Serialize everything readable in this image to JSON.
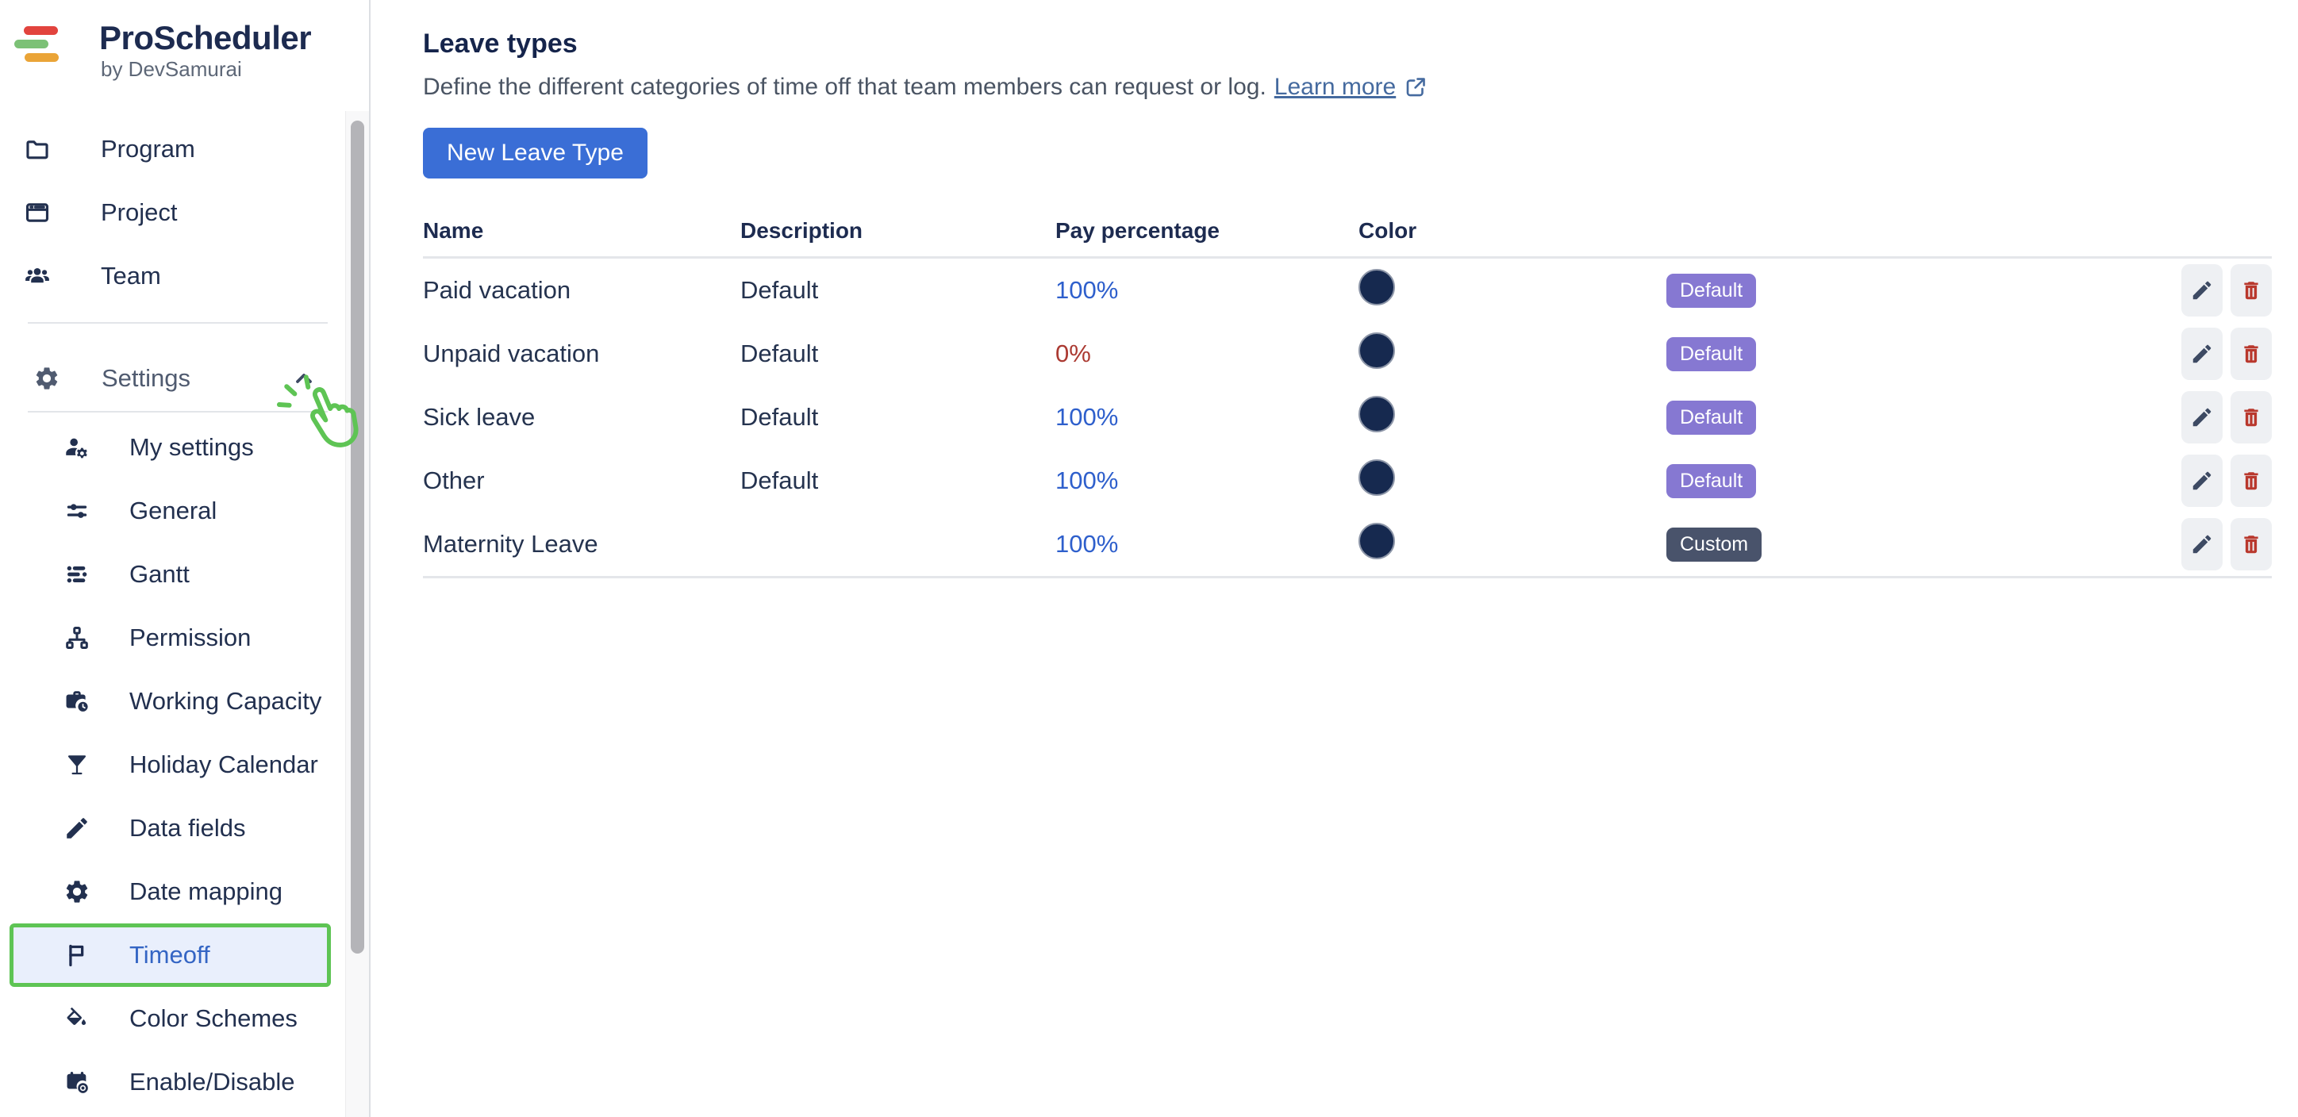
{
  "app": {
    "title": "ProScheduler",
    "byline": "by DevSamurai",
    "logo_colors": {
      "top": "#e2443e",
      "middle": "#7cc176",
      "bottom": "#eaa437"
    }
  },
  "sidebar": {
    "nav_items": [
      {
        "label": "Program",
        "icon": "folder"
      },
      {
        "label": "Project",
        "icon": "window"
      },
      {
        "label": "Team",
        "icon": "team"
      }
    ],
    "settings": {
      "label": "Settings",
      "items": [
        {
          "label": "My settings",
          "icon": "user-gear"
        },
        {
          "label": "General",
          "icon": "sliders"
        },
        {
          "label": "Gantt",
          "icon": "gantt-bars"
        },
        {
          "label": "Permission",
          "icon": "hierarchy"
        },
        {
          "label": "Working Capacity",
          "icon": "briefcase-clock"
        },
        {
          "label": "Holiday Calendar",
          "icon": "martini"
        },
        {
          "label": "Data fields",
          "icon": "pencil"
        },
        {
          "label": "Date mapping",
          "icon": "gear"
        },
        {
          "label": "Timeoff",
          "icon": "flag",
          "active": true
        },
        {
          "label": "Color Schemes",
          "icon": "paint-bucket"
        },
        {
          "label": "Enable/Disable",
          "icon": "calendar-dot"
        }
      ]
    },
    "highlight_color": "#5ec454"
  },
  "main": {
    "title": "Leave types",
    "description": "Define the different categories of time off that team members can request or log.",
    "learn_more_label": "Learn more",
    "new_button_label": "New Leave Type",
    "table": {
      "headers": [
        "Name",
        "Description",
        "Pay percentage",
        "Color"
      ],
      "rows": [
        {
          "name": "Paid vacation",
          "description": "Default",
          "pay": "100%",
          "pay_color": "#2e5fcc",
          "swatch": "#16294f",
          "badge": "Default",
          "badge_variant": "default"
        },
        {
          "name": "Unpaid vacation",
          "description": "Default",
          "pay": "0%",
          "pay_color": "#ab3a32",
          "swatch": "#16294f",
          "badge": "Default",
          "badge_variant": "default"
        },
        {
          "name": "Sick leave",
          "description": "Default",
          "pay": "100%",
          "pay_color": "#2e5fcc",
          "swatch": "#16294f",
          "badge": "Default",
          "badge_variant": "default"
        },
        {
          "name": "Other",
          "description": "Default",
          "pay": "100%",
          "pay_color": "#2e5fcc",
          "swatch": "#16294f",
          "badge": "Default",
          "badge_variant": "default"
        },
        {
          "name": "Maternity Leave",
          "description": "",
          "pay": "100%",
          "pay_color": "#2e5fcc",
          "swatch": "#16294f",
          "badge": "Custom",
          "badge_variant": "custom"
        }
      ]
    }
  },
  "colors": {
    "primary_button": "#3a6ed6",
    "link": "#456a9f",
    "badge_default": "#8678d2",
    "badge_custom": "#49536b",
    "active_bg": "#e9effc",
    "active_text": "#3465c4"
  }
}
